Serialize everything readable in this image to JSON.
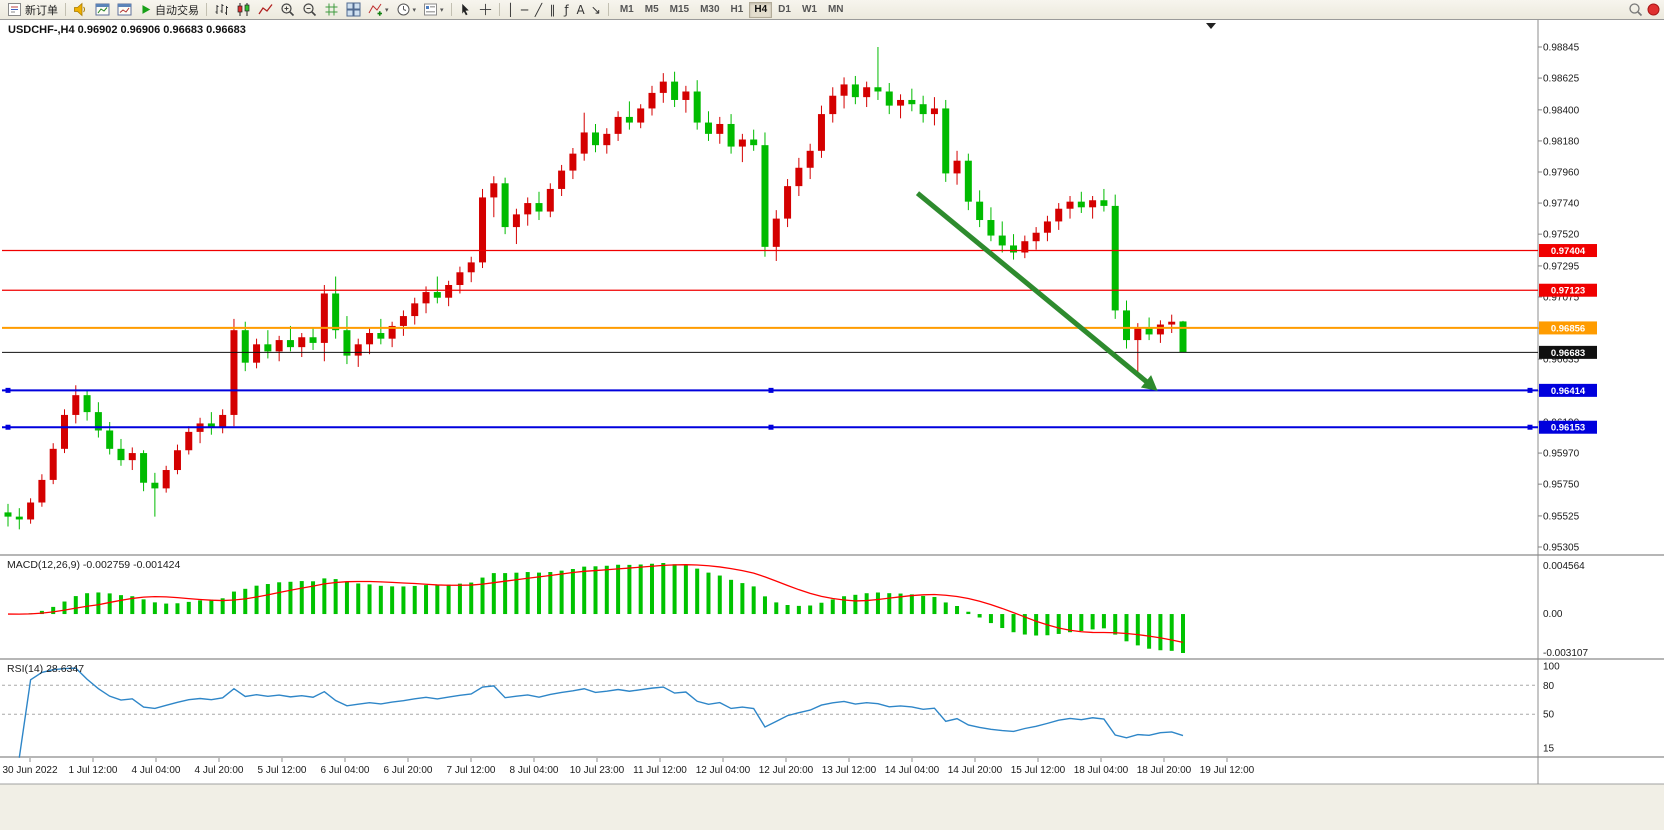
{
  "toolbar": {
    "new_order_label": "新订单",
    "auto_trading_label": "自动交易",
    "dropdown_caret": "▾",
    "timeframes": [
      "M1",
      "M5",
      "M15",
      "M30",
      "H1",
      "H4",
      "D1",
      "W1",
      "MN"
    ],
    "active_timeframe": "H4",
    "drawing_tools": [
      {
        "name": "vertical-line-tool",
        "glyph": "│"
      },
      {
        "name": "horizontal-line-tool",
        "glyph": "─"
      },
      {
        "name": "trendline-tool",
        "glyph": "╱"
      },
      {
        "name": "equidistant-channel-tool",
        "glyph": "∥"
      },
      {
        "name": "fibonacci-tool",
        "glyph": "ƒ"
      },
      {
        "name": "text-tool",
        "glyph": "A"
      },
      {
        "name": "arrows-tool",
        "glyph": "↘"
      }
    ]
  },
  "chart": {
    "title": "USDCHF-,H4 0.96902 0.96906 0.96683 0.96683"
  },
  "chart_data": [
    {
      "type": "candlestick",
      "symbol": "USDCHF-",
      "period": "H4",
      "open": 0.96902,
      "high": 0.96906,
      "low": 0.96683,
      "close": 0.96683,
      "up_color": "#d40000",
      "down_color": "#00bb00",
      "ylim": [
        0.95305,
        0.98845
      ],
      "y_ticks": [
        "0.98845",
        "0.98625",
        "0.98400",
        "0.98180",
        "0.97960",
        "0.97740",
        "0.97520",
        "0.97295",
        "0.97075",
        "0.96855",
        "0.96635",
        "0.96410",
        "0.96190",
        "0.95970",
        "0.95750",
        "0.95525",
        "0.95305"
      ],
      "x_labels": [
        "30 Jun 2022",
        "1 Jul 12:00",
        "4 Jul 04:00",
        "4 Jul 20:00",
        "5 Jul 12:00",
        "6 Jul 04:00",
        "6 Jul 20:00",
        "7 Jul 12:00",
        "8 Jul 04:00",
        "10 Jul 23:00",
        "11 Jul 12:00",
        "12 Jul 04:00",
        "12 Jul 20:00",
        "13 Jul 12:00",
        "14 Jul 04:00",
        "14 Jul 20:00",
        "15 Jul 12:00",
        "18 Jul 04:00",
        "18 Jul 20:00",
        "19 Jul 12:00"
      ],
      "hlines": [
        {
          "price": 0.97404,
          "label": "0.97404",
          "color": "#f00000",
          "width": 1.2
        },
        {
          "price": 0.97123,
          "label": "0.97123",
          "color": "#f00000",
          "width": 1.2
        },
        {
          "price": 0.96856,
          "label": "0.96856",
          "color": "#ff9c00",
          "width": 2
        },
        {
          "price": 0.96683,
          "label": "0.96683",
          "color": "#101010",
          "width": 1,
          "role": "bid-price"
        },
        {
          "price": 0.96414,
          "label": "0.96414",
          "color": "#0000dd",
          "width": 2,
          "handles": true
        },
        {
          "price": 0.96153,
          "label": "0.96153",
          "color": "#0000dd",
          "width": 2,
          "handles": true
        }
      ],
      "trend_arrow": {
        "from_bar": 80.5,
        "from_price": 0.9781,
        "to_bar": 101,
        "to_price": 0.9646,
        "color": "#2e8b2e"
      },
      "ohlc": [
        [
          0.9555,
          0.9561,
          0.9545,
          0.9552
        ],
        [
          0.9552,
          0.9558,
          0.9543,
          0.955
        ],
        [
          0.955,
          0.9565,
          0.9547,
          0.9562
        ],
        [
          0.9562,
          0.9582,
          0.9559,
          0.9578
        ],
        [
          0.9578,
          0.9604,
          0.9575,
          0.96
        ],
        [
          0.96,
          0.9628,
          0.9597,
          0.9624
        ],
        [
          0.9624,
          0.9645,
          0.9618,
          0.9638
        ],
        [
          0.9638,
          0.9642,
          0.962,
          0.9626
        ],
        [
          0.9626,
          0.9633,
          0.9608,
          0.9613
        ],
        [
          0.9613,
          0.9619,
          0.9596,
          0.96
        ],
        [
          0.96,
          0.9607,
          0.9588,
          0.9592
        ],
        [
          0.9592,
          0.9601,
          0.9585,
          0.9597
        ],
        [
          0.9597,
          0.9599,
          0.957,
          0.9576
        ],
        [
          0.9576,
          0.9583,
          0.9552,
          0.9572
        ],
        [
          0.9572,
          0.9588,
          0.9569,
          0.9585
        ],
        [
          0.9585,
          0.9603,
          0.9582,
          0.9599
        ],
        [
          0.9599,
          0.9616,
          0.9596,
          0.9612
        ],
        [
          0.9612,
          0.9622,
          0.9604,
          0.9618
        ],
        [
          0.9618,
          0.9626,
          0.961,
          0.9615
        ],
        [
          0.9615,
          0.9628,
          0.9611,
          0.9624
        ],
        [
          0.9624,
          0.9692,
          0.9616,
          0.9684
        ],
        [
          0.9684,
          0.969,
          0.9655,
          0.9661
        ],
        [
          0.9661,
          0.9678,
          0.9657,
          0.9674
        ],
        [
          0.9674,
          0.9684,
          0.9664,
          0.9669
        ],
        [
          0.9669,
          0.968,
          0.9662,
          0.9677
        ],
        [
          0.9677,
          0.9687,
          0.9669,
          0.9672
        ],
        [
          0.9672,
          0.9682,
          0.9665,
          0.9679
        ],
        [
          0.9679,
          0.9686,
          0.967,
          0.9675
        ],
        [
          0.9675,
          0.9716,
          0.9662,
          0.971
        ],
        [
          0.971,
          0.9722,
          0.9678,
          0.9684
        ],
        [
          0.9684,
          0.9694,
          0.966,
          0.9666
        ],
        [
          0.9666,
          0.9678,
          0.9658,
          0.9674
        ],
        [
          0.9674,
          0.9686,
          0.9667,
          0.9682
        ],
        [
          0.9682,
          0.9692,
          0.9674,
          0.9678
        ],
        [
          0.9678,
          0.969,
          0.9672,
          0.9687
        ],
        [
          0.9687,
          0.9698,
          0.968,
          0.9694
        ],
        [
          0.9694,
          0.9707,
          0.9688,
          0.9703
        ],
        [
          0.9703,
          0.9715,
          0.9696,
          0.9711
        ],
        [
          0.9711,
          0.9722,
          0.9703,
          0.9707
        ],
        [
          0.9707,
          0.9719,
          0.9701,
          0.9716
        ],
        [
          0.9716,
          0.9729,
          0.971,
          0.9725
        ],
        [
          0.9725,
          0.9736,
          0.9718,
          0.9732
        ],
        [
          0.9732,
          0.9784,
          0.9728,
          0.9778
        ],
        [
          0.9778,
          0.9793,
          0.9764,
          0.9788
        ],
        [
          0.9788,
          0.9792,
          0.9752,
          0.9757
        ],
        [
          0.9757,
          0.977,
          0.9745,
          0.9766
        ],
        [
          0.9766,
          0.9778,
          0.9758,
          0.9774
        ],
        [
          0.9774,
          0.9782,
          0.9762,
          0.9768
        ],
        [
          0.9768,
          0.9788,
          0.9764,
          0.9784
        ],
        [
          0.9784,
          0.9801,
          0.9779,
          0.9797
        ],
        [
          0.9797,
          0.9813,
          0.9791,
          0.9809
        ],
        [
          0.9809,
          0.9838,
          0.9804,
          0.9824
        ],
        [
          0.9824,
          0.983,
          0.981,
          0.9815
        ],
        [
          0.9815,
          0.9827,
          0.9809,
          0.9823
        ],
        [
          0.9823,
          0.9839,
          0.9818,
          0.9835
        ],
        [
          0.9835,
          0.9846,
          0.9826,
          0.9831
        ],
        [
          0.9831,
          0.9844,
          0.9827,
          0.9841
        ],
        [
          0.9841,
          0.9857,
          0.9836,
          0.9852
        ],
        [
          0.9852,
          0.9866,
          0.9845,
          0.986
        ],
        [
          0.986,
          0.9867,
          0.9842,
          0.9847
        ],
        [
          0.9847,
          0.9857,
          0.9838,
          0.9853
        ],
        [
          0.9853,
          0.9861,
          0.9826,
          0.9831
        ],
        [
          0.9831,
          0.9839,
          0.9818,
          0.9823
        ],
        [
          0.9823,
          0.9835,
          0.9816,
          0.983
        ],
        [
          0.983,
          0.9837,
          0.9809,
          0.9814
        ],
        [
          0.9814,
          0.9823,
          0.9803,
          0.9819
        ],
        [
          0.9819,
          0.9826,
          0.9811,
          0.9815
        ],
        [
          0.9815,
          0.9824,
          0.9736,
          0.9743
        ],
        [
          0.9743,
          0.9769,
          0.9733,
          0.9763
        ],
        [
          0.9763,
          0.9791,
          0.9757,
          0.9786
        ],
        [
          0.9786,
          0.9806,
          0.9779,
          0.9799
        ],
        [
          0.9799,
          0.9816,
          0.9791,
          0.9811
        ],
        [
          0.9811,
          0.9843,
          0.9806,
          0.9837
        ],
        [
          0.9837,
          0.9856,
          0.9831,
          0.985
        ],
        [
          0.985,
          0.9863,
          0.9841,
          0.9858
        ],
        [
          0.9858,
          0.9864,
          0.9844,
          0.9849
        ],
        [
          0.9849,
          0.986,
          0.9842,
          0.9856
        ],
        [
          0.9856,
          0.98845,
          0.9847,
          0.9853
        ],
        [
          0.9853,
          0.9859,
          0.9837,
          0.9843
        ],
        [
          0.9843,
          0.9851,
          0.9834,
          0.9847
        ],
        [
          0.9847,
          0.9855,
          0.9839,
          0.9844
        ],
        [
          0.9844,
          0.985,
          0.9831,
          0.9837
        ],
        [
          0.9837,
          0.9849,
          0.9829,
          0.9841
        ],
        [
          0.9841,
          0.9847,
          0.9789,
          0.9795
        ],
        [
          0.9795,
          0.9811,
          0.9787,
          0.9804
        ],
        [
          0.9804,
          0.9809,
          0.9769,
          0.9775
        ],
        [
          0.9775,
          0.9783,
          0.9757,
          0.9762
        ],
        [
          0.9762,
          0.9771,
          0.9747,
          0.9751
        ],
        [
          0.9751,
          0.9761,
          0.9739,
          0.9744
        ],
        [
          0.9744,
          0.9752,
          0.9734,
          0.9739
        ],
        [
          0.9739,
          0.9751,
          0.9735,
          0.9747
        ],
        [
          0.9747,
          0.9757,
          0.9741,
          0.9753
        ],
        [
          0.9753,
          0.9765,
          0.9747,
          0.9761
        ],
        [
          0.9761,
          0.9774,
          0.9755,
          0.977
        ],
        [
          0.977,
          0.9779,
          0.9763,
          0.9775
        ],
        [
          0.9775,
          0.9782,
          0.9767,
          0.9771
        ],
        [
          0.9771,
          0.9779,
          0.9763,
          0.9776
        ],
        [
          0.9776,
          0.9784,
          0.9768,
          0.9772
        ],
        [
          0.9772,
          0.978,
          0.9692,
          0.9698
        ],
        [
          0.9698,
          0.9705,
          0.9671,
          0.9677
        ],
        [
          0.9677,
          0.9689,
          0.9654,
          0.9686
        ],
        [
          0.9686,
          0.9693,
          0.9677,
          0.9681
        ],
        [
          0.9681,
          0.9691,
          0.9675,
          0.9688
        ],
        [
          0.9688,
          0.9695,
          0.9682,
          0.969
        ],
        [
          0.96902,
          0.96906,
          0.96683,
          0.96683
        ]
      ]
    },
    {
      "type": "macd",
      "label": "MACD(12,26,9) -0.002759 -0.001424",
      "fast": 12,
      "slow": 26,
      "signal": 9,
      "current_macd": -0.002759,
      "current_signal": -0.001424,
      "y_ticks": [
        "0.004564",
        "0.00",
        "-0.003107"
      ],
      "histogram_color": "#00c300",
      "signal_color": "#ff0000"
    },
    {
      "type": "rsi",
      "label": "RSI(14) 28.6347",
      "period": 14,
      "current_value": 28.6347,
      "levels": [
        80,
        50
      ],
      "y_ticks": [
        "100",
        "80",
        "50",
        "15"
      ],
      "range": [
        15,
        100
      ],
      "line_color": "#2e86c8"
    }
  ]
}
